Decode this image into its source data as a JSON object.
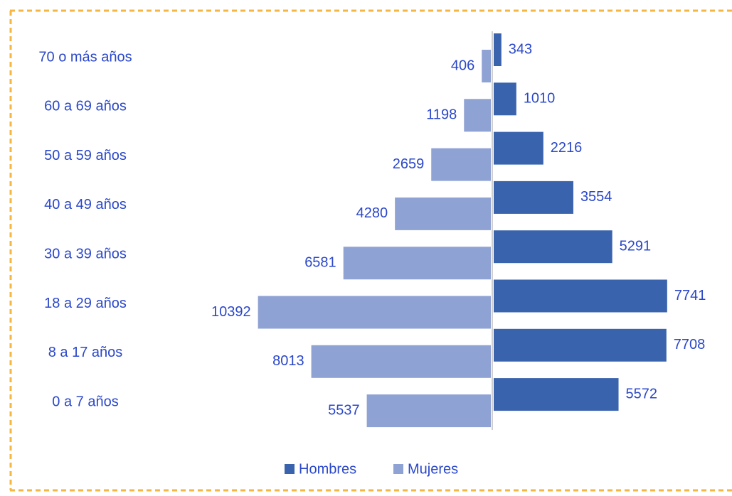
{
  "chart_data": {
    "type": "bar",
    "orientation": "horizontal",
    "layout": "pyramid",
    "categories": [
      "70 o más años",
      "60 a 69 años",
      "50 a 59 años",
      "40 a 49 años",
      "30 a 39 años",
      "18 a 29 años",
      "8 a 17 años",
      "0 a 7 años"
    ],
    "series": [
      {
        "name": "Hombres",
        "color": "#3a63ad",
        "values": [
          343,
          1010,
          2216,
          3554,
          5291,
          7741,
          7708,
          5572
        ]
      },
      {
        "name": "Mujeres",
        "color": "#8fa2d4",
        "values": [
          406,
          1198,
          2659,
          4280,
          6581,
          10392,
          8013,
          5537
        ]
      }
    ],
    "legend": "bottom"
  }
}
